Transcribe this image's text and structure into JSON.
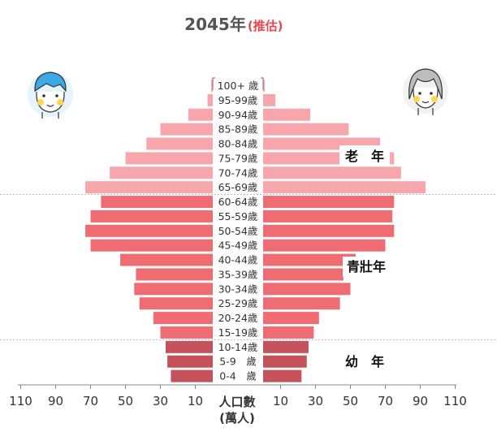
{
  "title": {
    "year": "2045年",
    "note": "(推估)"
  },
  "colors": {
    "elderly": "#f7a7ac",
    "working": "#f06c73",
    "youth": "#c4525b",
    "note": "#e8474f",
    "divider": "#bbbbbb",
    "label_bg": "#ffffff"
  },
  "icons": {
    "male": "boy-face-icon",
    "female": "grandma-face-icon"
  },
  "group_labels": {
    "elderly": "老　年",
    "working": "青壯年",
    "youth": "幼　年"
  },
  "axis": {
    "left_ticks": [
      "110",
      "90",
      "70",
      "50",
      "30",
      "10"
    ],
    "right_ticks": [
      "10",
      "30",
      "50",
      "70",
      "90",
      "110"
    ],
    "unit_line1": "人口數",
    "unit_line2": "(萬人)"
  },
  "chart_data": {
    "type": "bar",
    "subtype": "population-pyramid",
    "title": "2045年(推估)",
    "xlabel": "人口數(萬人)",
    "xlim": [
      0,
      110
    ],
    "grid": false,
    "categories": [
      "100+ 歲",
      "95-99歲",
      "90-94歲",
      "85-89歲",
      "80-84歲",
      "75-79歲",
      "70-74歲",
      "65-69歲",
      "60-64歲",
      "55-59歲",
      "50-54歲",
      "45-49歲",
      "40-44歲",
      "35-39歲",
      "30-34歲",
      "25-29歲",
      "20-24歲",
      "15-19歲",
      "10-14歲",
      "5-9　歲",
      "0-4　歲"
    ],
    "age_groups": [
      "elderly",
      "elderly",
      "elderly",
      "elderly",
      "elderly",
      "elderly",
      "elderly",
      "elderly",
      "working",
      "working",
      "working",
      "working",
      "working",
      "working",
      "working",
      "working",
      "working",
      "working",
      "youth",
      "youth",
      "youth"
    ],
    "series": [
      {
        "side": "left",
        "values": [
          1,
          3,
          14,
          30,
          38,
          50,
          59,
          73,
          64,
          70,
          73,
          70,
          53,
          44,
          45,
          42,
          34,
          30,
          27,
          26,
          24
        ]
      },
      {
        "side": "right",
        "values": [
          1,
          7,
          27,
          49,
          67,
          75,
          79,
          93,
          75,
          74,
          75,
          70,
          53,
          46,
          50,
          44,
          32,
          29,
          26,
          25,
          22
        ]
      }
    ]
  }
}
